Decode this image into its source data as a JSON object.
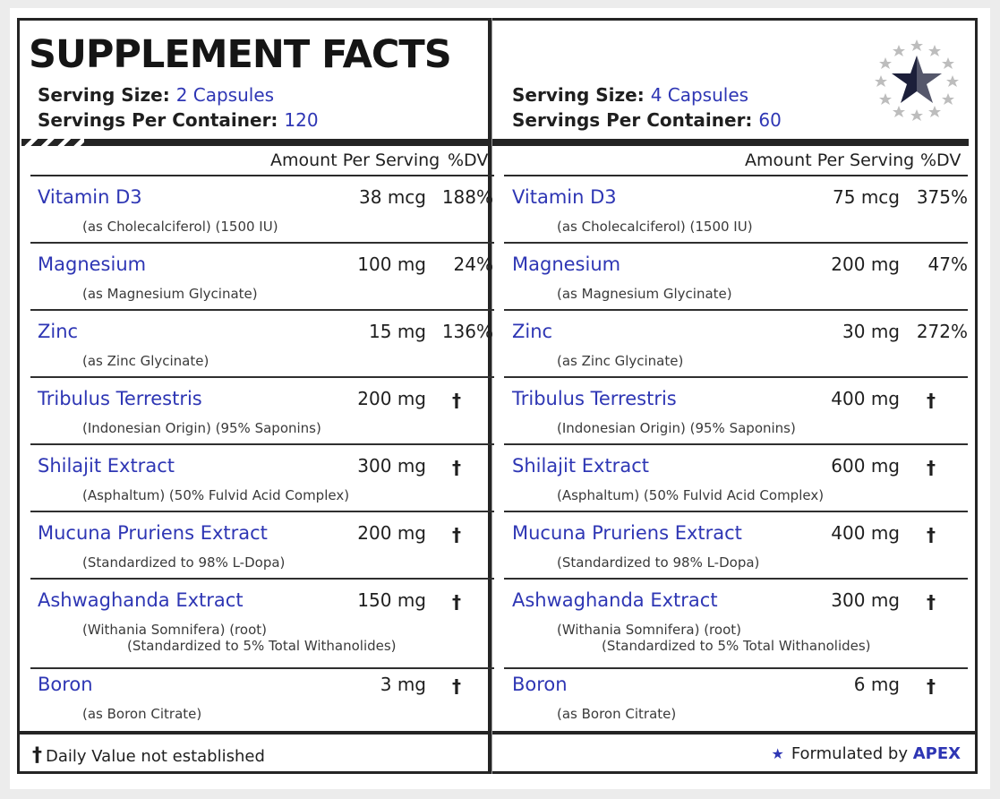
{
  "title": "SUPPLEMENT FACTS",
  "left": {
    "serving_label": "Serving Size:",
    "serving_value": "2 Capsules",
    "servings_label": "Servings Per Container:",
    "servings_value": "120"
  },
  "right": {
    "serving_label": "Serving Size:",
    "serving_value": "4 Capsules",
    "servings_label": "Servings Per Container:",
    "servings_value": "60"
  },
  "headers": {
    "amount": "Amount Per Serving",
    "dv": "%DV"
  },
  "rows": [
    {
      "name": "Vitamin D3",
      "sub": [
        "(as Cholecalciferol) (1500 IU)"
      ],
      "left_amt": "38 mcg",
      "left_dv": "188%",
      "right_amt": "75 mcg",
      "right_dv": "375%"
    },
    {
      "name": "Magnesium",
      "sub": [
        "(as Magnesium Glycinate)"
      ],
      "left_amt": "100 mg",
      "left_dv": "24%",
      "right_amt": "200 mg",
      "right_dv": "47%"
    },
    {
      "name": "Zinc",
      "sub": [
        "(as Zinc Glycinate)"
      ],
      "left_amt": "15 mg",
      "left_dv": "136%",
      "right_amt": "30 mg",
      "right_dv": "272%"
    },
    {
      "name": "Tribulus Terrestris",
      "sub": [
        "(Indonesian Origin) (95% Saponins)"
      ],
      "left_amt": "200 mg",
      "left_dv": "†",
      "right_amt": "400 mg",
      "right_dv": "†"
    },
    {
      "name": "Shilajit Extract",
      "sub": [
        "(Asphaltum) (50% Fulvid Acid Complex)"
      ],
      "left_amt": "300 mg",
      "left_dv": "†",
      "right_amt": "600 mg",
      "right_dv": "†"
    },
    {
      "name": "Mucuna Pruriens Extract",
      "sub": [
        "(Standardized to 98% L-Dopa)"
      ],
      "left_amt": "200 mg",
      "left_dv": "†",
      "right_amt": "400 mg",
      "right_dv": "†"
    },
    {
      "name": "Ashwaghanda Extract",
      "sub": [
        "(Withania Somnifera) (root)",
        "(Standardized to 5% Total Withanolides)"
      ],
      "left_amt": "150 mg",
      "left_dv": "†",
      "right_amt": "300 mg",
      "right_dv": "†"
    },
    {
      "name": "Boron",
      "sub": [
        "(as Boron Citrate)"
      ],
      "left_amt": "3 mg",
      "left_dv": "†",
      "right_amt": "6 mg",
      "right_dv": "†"
    }
  ],
  "footnote": {
    "symbol": "†",
    "text": "Daily Value not established"
  },
  "formulated": {
    "text": "Formulated by",
    "brand": "APEX"
  },
  "colors": {
    "accent": "#2e36b4",
    "ink": "#242424"
  },
  "logo_icon": "star-logo-icon"
}
